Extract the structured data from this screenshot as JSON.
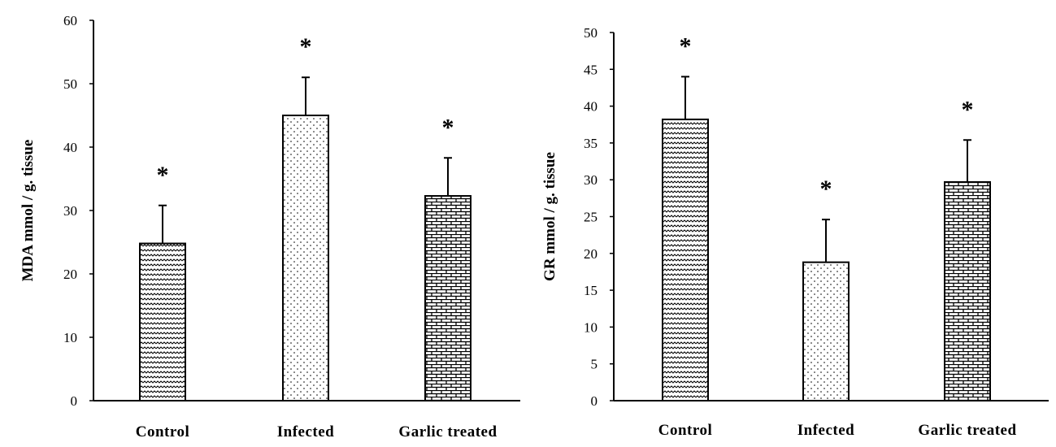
{
  "chart_data": [
    {
      "type": "bar",
      "ylabel": "MDA mmol / g. tissue",
      "categories": [
        "Control",
        "Infected",
        "Garlic treated"
      ],
      "values": [
        24.8,
        45.0,
        32.3
      ],
      "error": [
        6.0,
        6.0,
        6.0
      ],
      "annotations": [
        "*",
        "*",
        "*"
      ],
      "patterns": [
        "wave",
        "dots",
        "brick"
      ],
      "ylim": [
        0,
        60
      ],
      "yticks": [
        0,
        10,
        20,
        30,
        40,
        50,
        60
      ]
    },
    {
      "type": "bar",
      "ylabel": "GR mmol / g. tissue",
      "categories": [
        "Control",
        "Infected",
        "Garlic treated"
      ],
      "values": [
        38.2,
        18.8,
        29.7
      ],
      "error": [
        5.8,
        5.8,
        5.7
      ],
      "annotations": [
        "*",
        "*",
        "*"
      ],
      "patterns": [
        "wave",
        "dots",
        "brick"
      ],
      "ylim": [
        0,
        50
      ],
      "yticks": [
        0,
        5,
        10,
        15,
        20,
        25,
        30,
        35,
        40,
        45,
        50
      ]
    }
  ]
}
